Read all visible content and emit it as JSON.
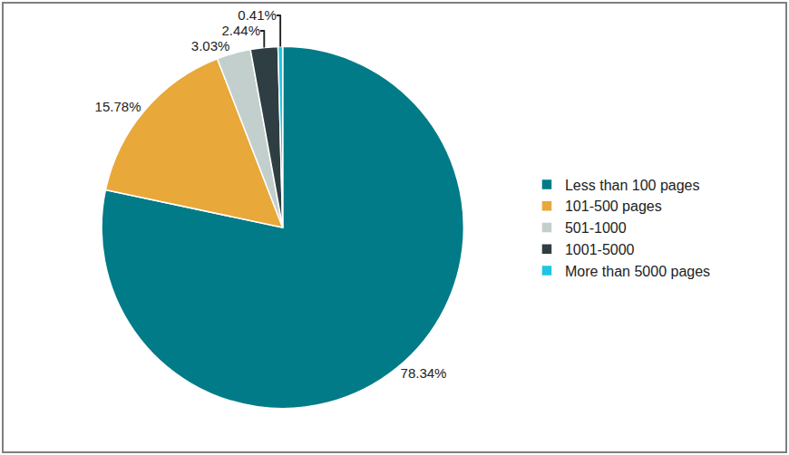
{
  "chart_data": {
    "type": "pie",
    "categories": [
      "Less than 100 pages",
      "101-500 pages",
      "501-1000",
      "1001-5000",
      "More than 5000 pages"
    ],
    "values": [
      78.34,
      15.78,
      3.03,
      2.44,
      0.41
    ],
    "value_labels": [
      "78.34%",
      "15.78%",
      "3.03%",
      "2.44%",
      "0.41%"
    ],
    "colors": [
      "#007b87",
      "#e8a83a",
      "#c3cfcc",
      "#2e3e42",
      "#1ec6df"
    ],
    "data_labels": true,
    "legend": "right"
  }
}
